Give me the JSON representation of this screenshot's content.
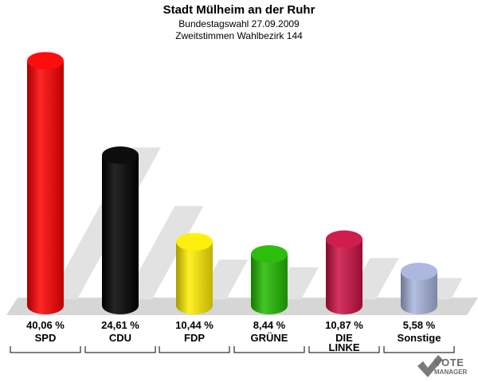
{
  "header": {
    "title": "Stadt Mülheim an der Ruhr",
    "subtitle1": "Bundestagswahl 27.09.2009",
    "subtitle2": "Zweitstimmen Wahlbezirk 144"
  },
  "chart_data": {
    "type": "bar",
    "categories": [
      "SPD",
      "CDU",
      "FDP",
      "GRÜNE",
      "DIE LINKE",
      "Sonstige"
    ],
    "category_lines": [
      [
        "SPD"
      ],
      [
        "CDU"
      ],
      [
        "FDP"
      ],
      [
        "GRÜNE"
      ],
      [
        "DIE",
        "LINKE"
      ],
      [
        "Sonstige"
      ]
    ],
    "values": [
      40.06,
      24.61,
      10.44,
      8.44,
      10.87,
      5.58
    ],
    "value_labels": [
      "40,06 %",
      "24,61 %",
      "10,44 %",
      "8,44 %",
      "10,87 %",
      "5,58 %"
    ],
    "colors": [
      "#ff0000",
      "#000000",
      "#ffee00",
      "#22bb00",
      "#cc1144",
      "#a8b4dd"
    ],
    "grid": false,
    "legend": "none"
  },
  "logo": {
    "line1": "VOTE",
    "line2": "MANAGER"
  }
}
